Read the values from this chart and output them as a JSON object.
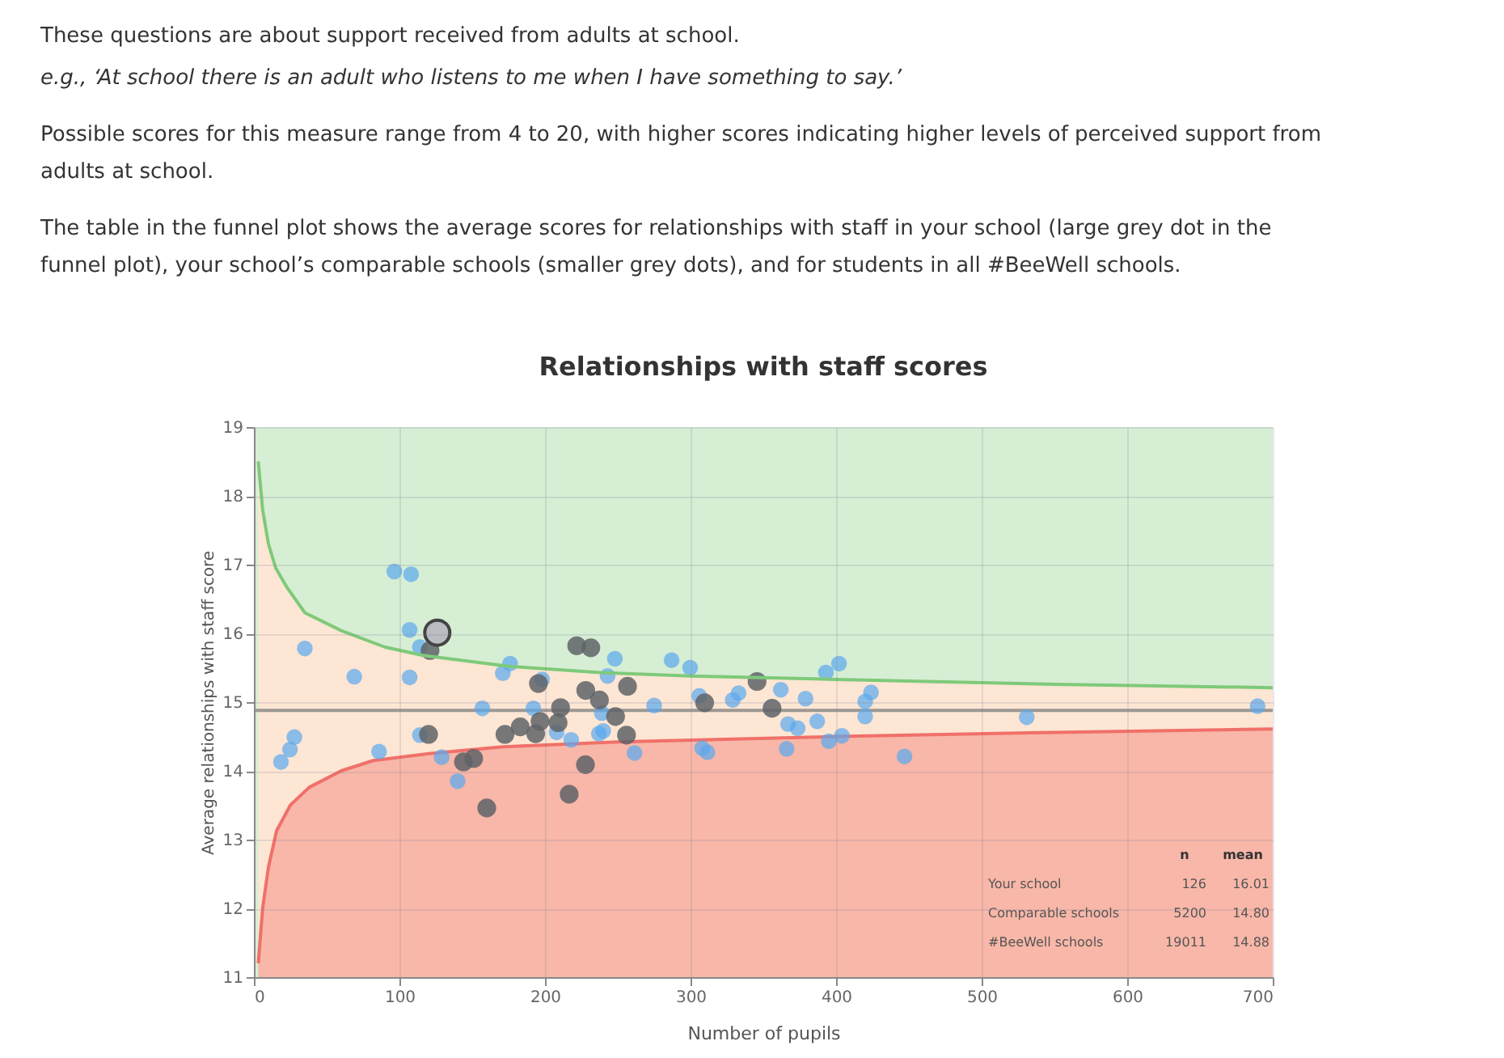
{
  "chart_data": [
    {
      "type": "other",
      "annotations": [
        "These questions are about support received from adults at school.",
        "e.g., ‘At school there is an adult who listens to me when I have something to say.’",
        "Possible scores for this measure range from 4 to 20, with higher scores indicating higher levels of perceived support from adults at school.",
        "The table in the funnel plot shows the average scores for relationships with staff in your school (large grey dot in the funnel plot), your school’s comparable schools (smaller grey dots), and for students in all #BeeWell schools."
      ]
    },
    {
      "type": "scatter",
      "title": "Relationships with staff scores",
      "xlabel": "Number of pupils",
      "ylabel": "Average relationships with staff score",
      "xlim": [
        0,
        700
      ],
      "xticks": [
        0,
        100,
        200,
        300,
        400,
        500,
        600,
        700
      ],
      "ylim": [
        11,
        19
      ],
      "yticks": [
        11,
        12,
        13,
        14,
        15,
        16,
        17,
        18,
        19
      ],
      "grid": true,
      "marker": "circle",
      "bands": [
        {
          "axis": "y",
          "from": 11,
          "to": 19,
          "color": "#d6eed4"
        }
      ],
      "series": [
        {
          "type": "area",
          "marker": "none",
          "color": "#fde6d3",
          "x": [
            3,
            6,
            10,
            15,
            23,
            35,
            60,
            90,
            116,
            175,
            238,
            300,
            400,
            550,
            700
          ],
          "values": [
            18.5,
            17.8,
            17.3,
            16.95,
            16.66,
            16.3,
            16.04,
            15.8,
            15.68,
            15.52,
            15.43,
            15.38,
            15.33,
            15.26,
            15.21
          ]
        },
        {
          "type": "area",
          "marker": "none",
          "color": "#f0706a",
          "x": [
            3,
            6,
            10,
            15.6,
            25,
            38,
            60,
            82,
            120,
            171,
            250,
            400,
            550,
            700
          ],
          "values": [
            11.2,
            12.0,
            12.6,
            13.13,
            13.5,
            13.76,
            14.0,
            14.15,
            14.25,
            14.35,
            14.42,
            14.5,
            14.56,
            14.61
          ]
        },
        {
          "type": "line",
          "marker": "none",
          "color": "#7dca7a",
          "x": [
            3,
            6,
            10,
            15,
            23,
            35,
            60,
            90,
            116,
            175,
            238,
            300,
            400,
            550,
            700
          ],
          "values": [
            18.5,
            17.8,
            17.3,
            16.95,
            16.66,
            16.3,
            16.04,
            15.8,
            15.68,
            15.52,
            15.43,
            15.38,
            15.33,
            15.26,
            15.21
          ]
        },
        {
          "type": "scatter",
          "color": "#5aa8f0",
          "x": [
            18.6,
            24.8,
            27.8,
            35,
            69,
            86,
            96.5,
            108,
            107,
            114,
            107,
            114,
            129,
            140,
            157,
            171,
            176,
            192,
            198,
            208,
            218,
            237,
            240,
            239,
            243,
            248,
            261.5,
            275,
            287,
            299.7,
            306,
            308,
            311.6,
            329,
            333,
            362,
            366,
            367,
            373.6,
            379,
            387,
            393,
            395,
            402,
            404,
            420,
            420,
            424,
            447,
            531,
            689.6
          ],
          "values": [
            14.13,
            14.31,
            14.49,
            15.78,
            15.37,
            14.28,
            16.9,
            16.86,
            16.05,
            15.8,
            15.36,
            14.52,
            14.2,
            13.85,
            14.91,
            15.42,
            15.56,
            14.91,
            15.33,
            14.56,
            14.45,
            14.54,
            14.58,
            14.84,
            15.38,
            15.63,
            14.26,
            14.95,
            15.61,
            15.5,
            15.09,
            14.33,
            14.27,
            15.03,
            15.13,
            15.18,
            14.32,
            14.68,
            14.62,
            15.05,
            14.72,
            15.43,
            14.43,
            15.56,
            14.51,
            14.79,
            15.01,
            15.14,
            14.21,
            14.78,
            14.94
          ]
        },
        {
          "type": "scatter",
          "color": "#5f6367",
          "x": [
            121,
            120,
            144,
            151,
            160,
            172.5,
            183,
            193.6,
            195.5,
            196.6,
            209,
            210.7,
            216.6,
            221.8,
            227.8,
            228,
            231.5,
            237.4,
            248.5,
            256.7,
            256,
            309.7,
            345.7,
            356
          ],
          "values": [
            15.75,
            14.53,
            14.13,
            14.18,
            13.46,
            14.53,
            14.64,
            14.54,
            15.27,
            14.72,
            14.7,
            14.92,
            13.66,
            15.82,
            14.09,
            15.17,
            15.79,
            15.03,
            14.79,
            15.23,
            14.52,
            14.99,
            15.3,
            14.91
          ]
        },
        {
          "type": "scatter",
          "color": "#b9bcc0",
          "x": [
            126
          ],
          "values": [
            16.01
          ]
        }
      ],
      "ref_lines": [
        {
          "axis": "y",
          "value": 14.88,
          "color": "#9c9893"
        }
      ],
      "annotations": [
        "n",
        "mean",
        "Your school",
        "126",
        "16.01",
        "Comparable schools",
        "5200",
        "14.80",
        "#BeeWell schools",
        "19011",
        "14.88"
      ]
    }
  ]
}
